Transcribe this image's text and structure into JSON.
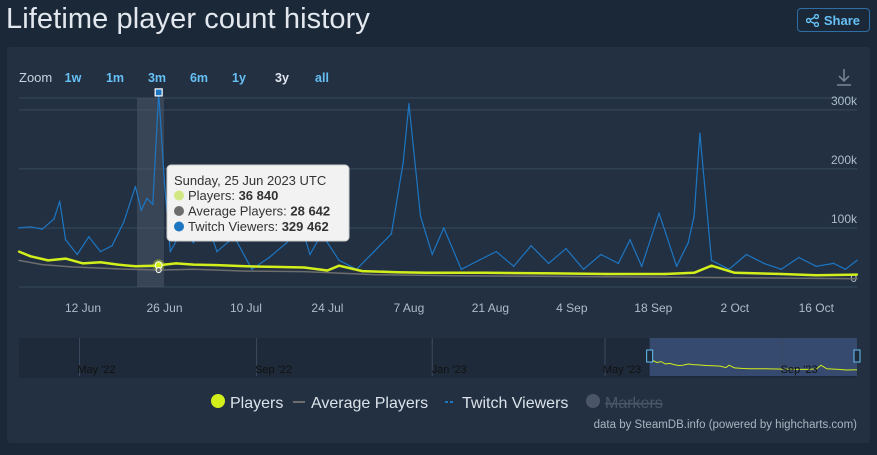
{
  "page": {
    "title": "Lifetime player count history",
    "share_label": "Share"
  },
  "zoom": {
    "label": "Zoom",
    "options": [
      "1w",
      "1m",
      "3m",
      "6m",
      "1y",
      "3y",
      "all"
    ],
    "selected": "3y"
  },
  "tooltip": {
    "date": "Sunday, 25 Jun 2023 UTC",
    "rows": [
      {
        "label": "Players: ",
        "value": "36 840",
        "color": "#d2e885"
      },
      {
        "label": "Average Players: ",
        "value": "28 642",
        "color": "#6d6d6d"
      },
      {
        "label": "Twitch Viewers: ",
        "value": "329 462",
        "color": "#1d76c2"
      }
    ]
  },
  "legend": [
    {
      "name": "Players",
      "color": "#d2ee1b",
      "marker": "dot",
      "enabled": true
    },
    {
      "name": "Average Players",
      "color": "#6d6d6d",
      "marker": "line",
      "enabled": true
    },
    {
      "name": "Twitch Viewers",
      "color": "#1d76c2",
      "marker": "dash",
      "enabled": true
    },
    {
      "name": "Markers",
      "color": "#4a5568",
      "marker": "dot",
      "enabled": false
    }
  ],
  "credits": "data by SteamDB.info (powered by highcharts.com)",
  "chart_data": {
    "type": "line",
    "title": "Lifetime player count history",
    "x_dates": [
      "2023-06-01",
      "2023-10-23"
    ],
    "x_ticks": [
      "12 Jun",
      "26 Jun",
      "10 Jul",
      "24 Jul",
      "7 Aug",
      "21 Aug",
      "4 Sep",
      "18 Sep",
      "2 Oct",
      "16 Oct"
    ],
    "y_ticks": [
      "0",
      "100k",
      "200k",
      "300k"
    ],
    "ylim": [
      0,
      320000
    ],
    "grid": true,
    "series": [
      {
        "name": "Players",
        "color": "#d2ee1b",
        "x": [
          "2023-06-01",
          "2023-06-03",
          "2023-06-06",
          "2023-06-09",
          "2023-06-12",
          "2023-06-15",
          "2023-06-18",
          "2023-06-21",
          "2023-06-24",
          "2023-06-25",
          "2023-06-28",
          "2023-07-01",
          "2023-07-05",
          "2023-07-10",
          "2023-07-15",
          "2023-07-20",
          "2023-07-24",
          "2023-07-26",
          "2023-07-30",
          "2023-08-05",
          "2023-08-10",
          "2023-08-20",
          "2023-09-01",
          "2023-09-10",
          "2023-09-20",
          "2023-09-25",
          "2023-09-28",
          "2023-10-02",
          "2023-10-10",
          "2023-10-16",
          "2023-10-23"
        ],
        "values": [
          60000,
          52000,
          45000,
          48000,
          40000,
          42000,
          38000,
          35000,
          36000,
          36840,
          40000,
          38000,
          37000,
          35000,
          34000,
          33000,
          28000,
          36000,
          27000,
          25000,
          24000,
          24000,
          23000,
          22000,
          22000,
          24000,
          36000,
          24000,
          22000,
          20000,
          21000
        ]
      },
      {
        "name": "Average Players",
        "color": "#6d6d6d",
        "x": [
          "2023-06-01",
          "2023-06-05",
          "2023-06-10",
          "2023-06-15",
          "2023-06-20",
          "2023-06-25",
          "2023-07-01",
          "2023-07-10",
          "2023-07-20",
          "2023-08-01",
          "2023-08-15",
          "2023-09-01",
          "2023-09-15",
          "2023-10-01",
          "2023-10-23"
        ],
        "values": [
          45000,
          38000,
          34000,
          32000,
          30000,
          28642,
          30000,
          27000,
          26000,
          21000,
          19000,
          18000,
          17000,
          16000,
          14000
        ]
      },
      {
        "name": "Twitch Viewers",
        "color": "#1d76c2",
        "x": [
          "2023-06-01",
          "2023-06-03",
          "2023-06-05",
          "2023-06-07",
          "2023-06-08",
          "2023-06-09",
          "2023-06-11",
          "2023-06-13",
          "2023-06-15",
          "2023-06-17",
          "2023-06-19",
          "2023-06-21",
          "2023-06-22",
          "2023-06-23",
          "2023-06-24",
          "2023-06-25",
          "2023-06-26",
          "2023-06-27",
          "2023-06-29",
          "2023-07-01",
          "2023-07-03",
          "2023-07-05",
          "2023-07-08",
          "2023-07-11",
          "2023-07-14",
          "2023-07-17",
          "2023-07-19",
          "2023-07-21",
          "2023-07-23",
          "2023-07-26",
          "2023-07-29",
          "2023-08-01",
          "2023-08-04",
          "2023-08-06",
          "2023-08-07",
          "2023-08-09",
          "2023-08-11",
          "2023-08-13",
          "2023-08-16",
          "2023-08-19",
          "2023-08-22",
          "2023-08-25",
          "2023-08-28",
          "2023-08-31",
          "2023-09-03",
          "2023-09-06",
          "2023-09-09",
          "2023-09-12",
          "2023-09-14",
          "2023-09-16",
          "2023-09-19",
          "2023-09-22",
          "2023-09-24",
          "2023-09-25",
          "2023-09-26",
          "2023-09-28",
          "2023-10-01",
          "2023-10-04",
          "2023-10-07",
          "2023-10-10",
          "2023-10-13",
          "2023-10-16",
          "2023-10-19",
          "2023-10-21",
          "2023-10-23"
        ],
        "values": [
          100000,
          102000,
          98000,
          115000,
          145000,
          80000,
          55000,
          85000,
          60000,
          70000,
          110000,
          170000,
          130000,
          150000,
          140000,
          329462,
          175000,
          60000,
          95000,
          75000,
          120000,
          60000,
          85000,
          30000,
          50000,
          75000,
          120000,
          55000,
          90000,
          45000,
          30000,
          60000,
          90000,
          210000,
          310000,
          120000,
          55000,
          100000,
          30000,
          45000,
          60000,
          35000,
          70000,
          40000,
          65000,
          30000,
          55000,
          40000,
          80000,
          35000,
          125000,
          35000,
          75000,
          120000,
          260000,
          45000,
          30000,
          55000,
          40000,
          30000,
          50000,
          35000,
          40000,
          30000,
          45000
        ]
      }
    ]
  },
  "navigator": {
    "labels": [
      "May '22",
      "Sep '22",
      "Jan '23",
      "May '23",
      "Sep '23"
    ],
    "x_dates": [
      "2022-03-20",
      "2023-10-23"
    ],
    "selection": [
      "2023-06-01",
      "2023-10-23"
    ]
  }
}
